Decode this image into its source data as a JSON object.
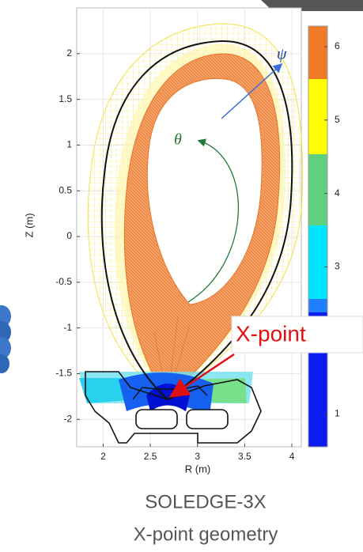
{
  "chart_data": {
    "type": "mesh",
    "xlabel": "R (m)",
    "ylabel": "Z (m)",
    "xlim": [
      1.72,
      4.1
    ],
    "ylim": [
      -2.3,
      2.5
    ],
    "xticks": [
      2,
      2.5,
      3,
      3.5,
      4
    ],
    "yticks": [
      2,
      1.5,
      1,
      0.5,
      0,
      -0.5,
      -1,
      -1.5,
      -2
    ],
    "colorbar": {
      "lim": [
        0.55,
        6.28
      ],
      "ticks": [
        1,
        3,
        4,
        5,
        6
      ]
    },
    "annotations": {
      "psi": "ψ",
      "theta": "θ",
      "xpoint": "X-point"
    }
  },
  "caption": [
    "SOLEDGE-3X",
    "X-point geometry"
  ]
}
